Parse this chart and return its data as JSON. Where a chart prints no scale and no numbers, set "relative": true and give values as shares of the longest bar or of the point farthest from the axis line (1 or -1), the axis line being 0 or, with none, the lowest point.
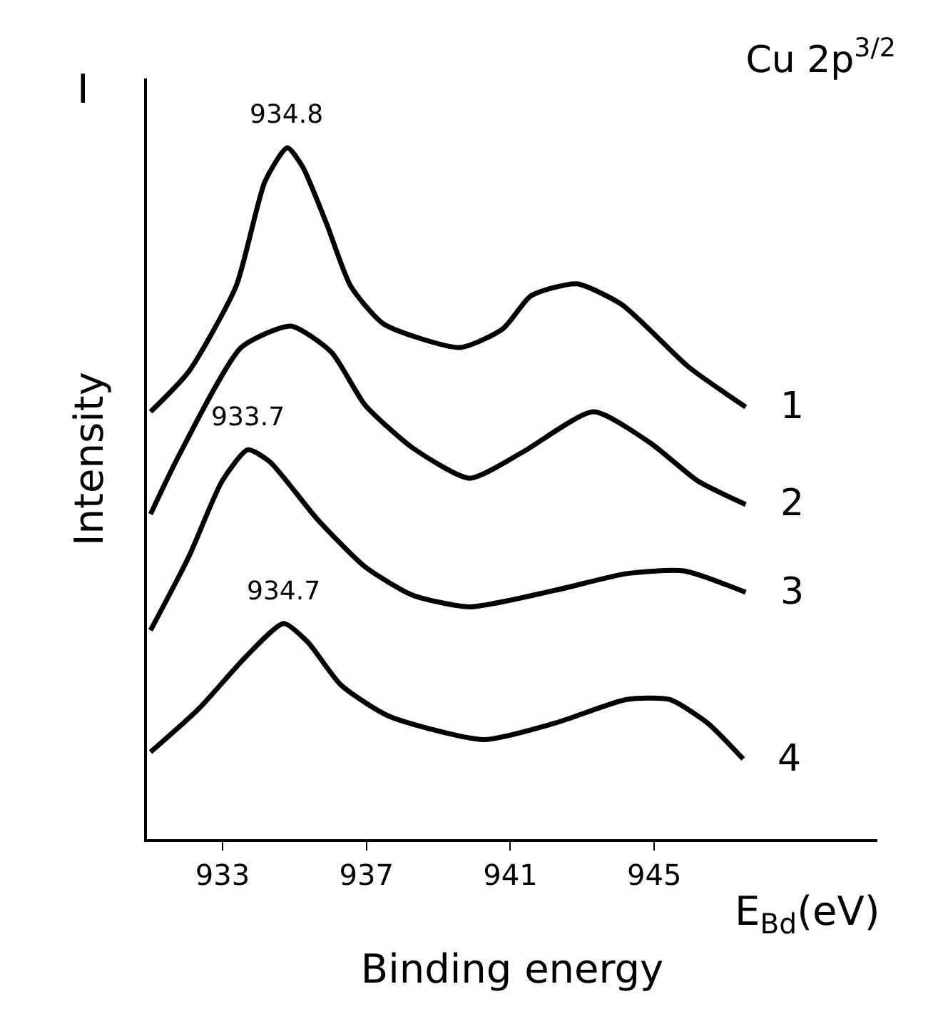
{
  "chart_data": {
    "type": "line",
    "relative": true,
    "title": "Cu 2p$^{3/2}$",
    "xlabel": "Binding energy",
    "ylabel": "Intensity",
    "xlim": [
      930.9,
      951.2
    ],
    "xticks": [
      933,
      937,
      941,
      945
    ],
    "legend": false,
    "marker": "none",
    "line_style": "solid",
    "series": [
      {
        "name": "1",
        "color": "#000000",
        "x": [
          931.0,
          932.06,
          933.38,
          934.18,
          934.8,
          935.23,
          935.9,
          936.56,
          937.48,
          939.6,
          940.79,
          941.58,
          942.84,
          944.1,
          945.95,
          947.54
        ],
        "values": [
          0.618,
          0.676,
          0.8,
          0.951,
          1.0,
          0.972,
          0.889,
          0.8,
          0.745,
          0.711,
          0.738,
          0.786,
          0.803,
          0.773,
          0.683,
          0.625
        ]
      },
      {
        "name": "2",
        "color": "#000000",
        "x": [
          931.0,
          931.8,
          933.52,
          934.9,
          936.03,
          936.96,
          938.28,
          939.87,
          941.32,
          943.31,
          944.89,
          946.21,
          947.54
        ],
        "values": [
          0.47,
          0.556,
          0.711,
          0.742,
          0.704,
          0.628,
          0.566,
          0.522,
          0.559,
          0.618,
          0.573,
          0.518,
          0.484
        ]
      },
      {
        "name": "3",
        "color": "#000000",
        "x": [
          931.0,
          932.06,
          932.99,
          933.7,
          934.31,
          935.63,
          936.96,
          938.28,
          939.87,
          942.25,
          944.23,
          945.82,
          947.54
        ],
        "values": [
          0.302,
          0.408,
          0.518,
          0.563,
          0.546,
          0.463,
          0.394,
          0.353,
          0.336,
          0.36,
          0.384,
          0.388,
          0.357
        ]
      },
      {
        "name": "4",
        "color": "#000000",
        "x": [
          931.0,
          932.33,
          933.65,
          934.7,
          935.37,
          936.29,
          937.62,
          940.26,
          942.25,
          944.23,
          945.42,
          946.48,
          947.47
        ],
        "values": [
          0.126,
          0.188,
          0.264,
          0.312,
          0.285,
          0.223,
          0.178,
          0.144,
          0.168,
          0.202,
          0.202,
          0.168,
          0.116
        ]
      }
    ],
    "annotations": [
      "I",
      "E$_{Bd}$(eV)",
      {
        "text": "934.8",
        "x": 934.8,
        "y": 1.0
      },
      {
        "text": "933.7",
        "x": 933.7,
        "y": 0.563
      },
      {
        "text": "934.7",
        "x": 934.7,
        "y": 0.312
      }
    ]
  }
}
